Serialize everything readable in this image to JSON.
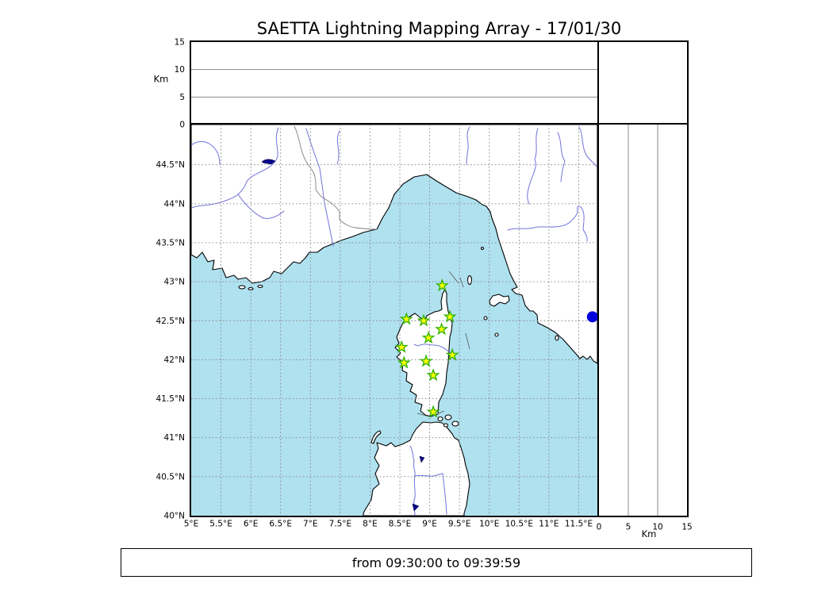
{
  "title": "SAETTA Lightning Mapping Array - 17/01/30",
  "footer": {
    "time_range": "from 09:30:00 to 09:39:59"
  },
  "axes": {
    "altitude": {
      "label": "Km",
      "ticks": [
        0,
        5,
        10,
        15
      ],
      "range": [
        0,
        15
      ]
    },
    "longitude": {
      "ticks": [
        {
          "label": "5°E",
          "value": 5
        },
        {
          "label": "5.5°E",
          "value": 5.5
        },
        {
          "label": "6°E",
          "value": 6
        },
        {
          "label": "6.5°E",
          "value": 6.5
        },
        {
          "label": "7°E",
          "value": 7
        },
        {
          "label": "7.5°E",
          "value": 7.5
        },
        {
          "label": "8°E",
          "value": 8
        },
        {
          "label": "8.5°E",
          "value": 8.5
        },
        {
          "label": "9°E",
          "value": 9
        },
        {
          "label": "9.5°E",
          "value": 9.5
        },
        {
          "label": "10°E",
          "value": 10
        },
        {
          "label": "10.5°E",
          "value": 10.5
        },
        {
          "label": "11°E",
          "value": 11
        },
        {
          "label": "11.5°E",
          "value": 11.5
        }
      ]
    },
    "latitude": {
      "ticks": [
        {
          "label": "44.5°N",
          "value": 44.5
        },
        {
          "label": "44°N",
          "value": 44
        },
        {
          "label": "43.5°N",
          "value": 43.5
        },
        {
          "label": "43°N",
          "value": 43
        },
        {
          "label": "42.5°N",
          "value": 42.5
        },
        {
          "label": "42°N",
          "value": 42
        },
        {
          "label": "41.5°N",
          "value": 41.5
        },
        {
          "label": "41°N",
          "value": 41
        },
        {
          "label": "40.5°N",
          "value": 40.5
        },
        {
          "label": "40°N",
          "value": 40
        }
      ]
    }
  },
  "map": {
    "lon_range": [
      5,
      11.81
    ],
    "lat_range": [
      40,
      45.01
    ],
    "stations": [
      {
        "lon": 9.21,
        "lat": 42.95
      },
      {
        "lon": 8.61,
        "lat": 42.52
      },
      {
        "lon": 8.9,
        "lat": 42.5
      },
      {
        "lon": 9.34,
        "lat": 42.55
      },
      {
        "lon": 9.2,
        "lat": 42.39
      },
      {
        "lon": 8.98,
        "lat": 42.28
      },
      {
        "lon": 8.53,
        "lat": 42.16
      },
      {
        "lon": 9.38,
        "lat": 42.06
      },
      {
        "lon": 8.57,
        "lat": 41.96
      },
      {
        "lon": 8.94,
        "lat": 41.98
      },
      {
        "lon": 9.06,
        "lat": 41.8
      },
      {
        "lon": 9.06,
        "lat": 41.33
      }
    ],
    "source_dot": {
      "lon": 11.73,
      "lat": 42.55
    }
  },
  "chart_data": {
    "type": "scatter",
    "title": "SAETTA Lightning Mapping Array - 17/01/30",
    "notes": "Top panel (altitude 0-15 Km vs longitude) empty; right panel (altitude 0-15 Km vs latitude) empty; map shows 12 station star markers over Corsica and one blue lightning-source dot at 11.73E 42.55N",
    "series": [
      {
        "name": "stations",
        "marker": "star",
        "x": [
          9.21,
          8.61,
          8.9,
          9.34,
          9.2,
          8.98,
          8.53,
          9.38,
          8.57,
          8.94,
          9.06,
          9.06
        ],
        "y": [
          42.95,
          42.52,
          42.5,
          42.55,
          42.39,
          42.28,
          42.16,
          42.06,
          41.96,
          41.98,
          41.8,
          41.33
        ]
      },
      {
        "name": "sources",
        "marker": "circle",
        "x": [
          11.73
        ],
        "y": [
          42.55
        ]
      }
    ],
    "xlabel": "longitude",
    "ylabel": "latitude",
    "xlim": [
      5,
      11.81
    ],
    "ylim": [
      40,
      45.01
    ],
    "grid": "dashed"
  },
  "colors": {
    "sea": "#afe1ef",
    "land": "#ffffff",
    "coastline": "#000000",
    "river": "#7272dd",
    "grid": "#8c8c8c",
    "station_fill": "#ffff00",
    "station_edge": "#2db200",
    "source_dot": "#0000dd"
  }
}
